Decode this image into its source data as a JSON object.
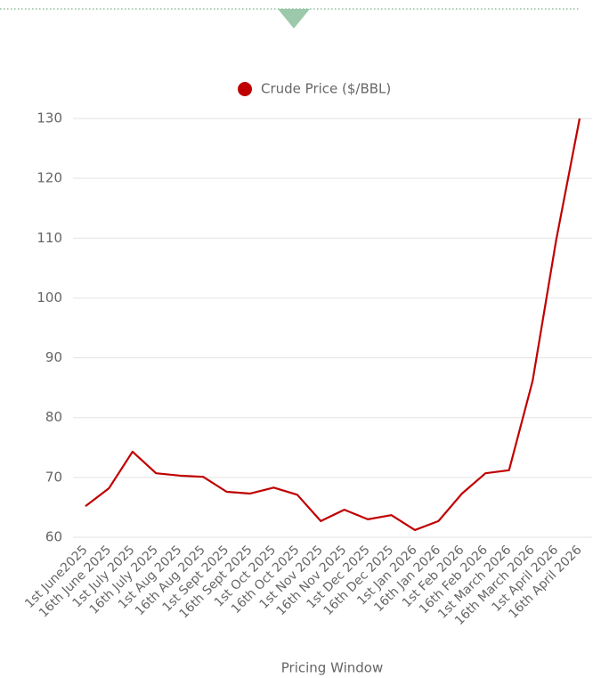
{
  "chart_data": {
    "type": "line",
    "xlabel": "Pricing Window",
    "categories": [
      "1st June2025",
      "16th June 2025",
      "1st July 2025",
      "16th July 2025",
      "1st Aug 2025",
      "16th Aug 2025",
      "1st Sept 2025",
      "16th Sept 2025",
      "1st Oct 2025",
      "16th Oct 2025",
      "1st Nov 2025",
      "16th Nov 2025",
      "1st Dec 2025",
      "16th Dec 2025",
      "1st Jan 2026",
      "16th Jan 2026",
      "1st Feb 2026",
      "16th Feb 2026",
      "1st March 2026",
      "16th March 2026",
      "1st April 2026",
      "16th April 2026"
    ],
    "series": [
      {
        "name": "Crude Price ($/BBL)",
        "color": "#c00000",
        "values": [
          65.2,
          68.2,
          74.3,
          70.7,
          70.3,
          70.1,
          67.6,
          67.3,
          68.3,
          67.1,
          62.7,
          64.6,
          63.0,
          63.7,
          61.2,
          62.7,
          67.3,
          70.7,
          71.2,
          86.1,
          109.6,
          130
        ]
      }
    ],
    "ylim": [
      60,
      130
    ],
    "yticks": [
      60,
      70,
      80,
      90,
      100,
      110,
      120,
      130
    ],
    "grid": true,
    "legend": "top"
  }
}
